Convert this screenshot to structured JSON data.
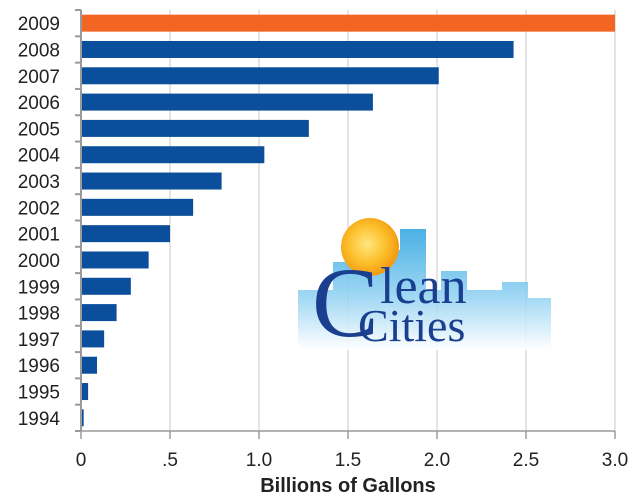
{
  "chart_data": {
    "type": "bar",
    "orientation": "horizontal",
    "categories": [
      "2009",
      "2008",
      "2007",
      "2006",
      "2005",
      "2004",
      "2003",
      "2002",
      "2001",
      "2000",
      "1999",
      "1998",
      "1997",
      "1996",
      "1995",
      "1994"
    ],
    "values": [
      3.0,
      2.43,
      2.01,
      1.64,
      1.28,
      1.03,
      0.79,
      0.63,
      0.5,
      0.38,
      0.28,
      0.2,
      0.13,
      0.09,
      0.04,
      0.015
    ],
    "colors": [
      "#f26522",
      "#0b4f9c",
      "#0b4f9c",
      "#0b4f9c",
      "#0b4f9c",
      "#0b4f9c",
      "#0b4f9c",
      "#0b4f9c",
      "#0b4f9c",
      "#0b4f9c",
      "#0b4f9c",
      "#0b4f9c",
      "#0b4f9c",
      "#0b4f9c",
      "#0b4f9c",
      "#0b4f9c"
    ],
    "highlight_color": "#f26522",
    "bar_color": "#0b4f9c",
    "xticks": [
      "0",
      ".5",
      "1.0",
      "1.5",
      "2.0",
      "2.5",
      "3.0"
    ],
    "xtick_values": [
      0,
      0.5,
      1.0,
      1.5,
      2.0,
      2.5,
      3.0
    ],
    "xlim": [
      0,
      3.0
    ],
    "xlabel": "Billions of Gallons",
    "ylabel": "",
    "title": "",
    "grid": "vertical",
    "legend": "none"
  },
  "logo": {
    "name": "Clean Cities",
    "line1_initial": "C",
    "line1_rest": "lean",
    "line2": "Cities"
  },
  "colors": {
    "grid": "#c8c8c8",
    "axis": "#9a9a9a",
    "text": "#222222",
    "logo_text": "#1a3f8f",
    "logo_sky": "#3aa8e0",
    "logo_sun": "#f7a81b"
  }
}
